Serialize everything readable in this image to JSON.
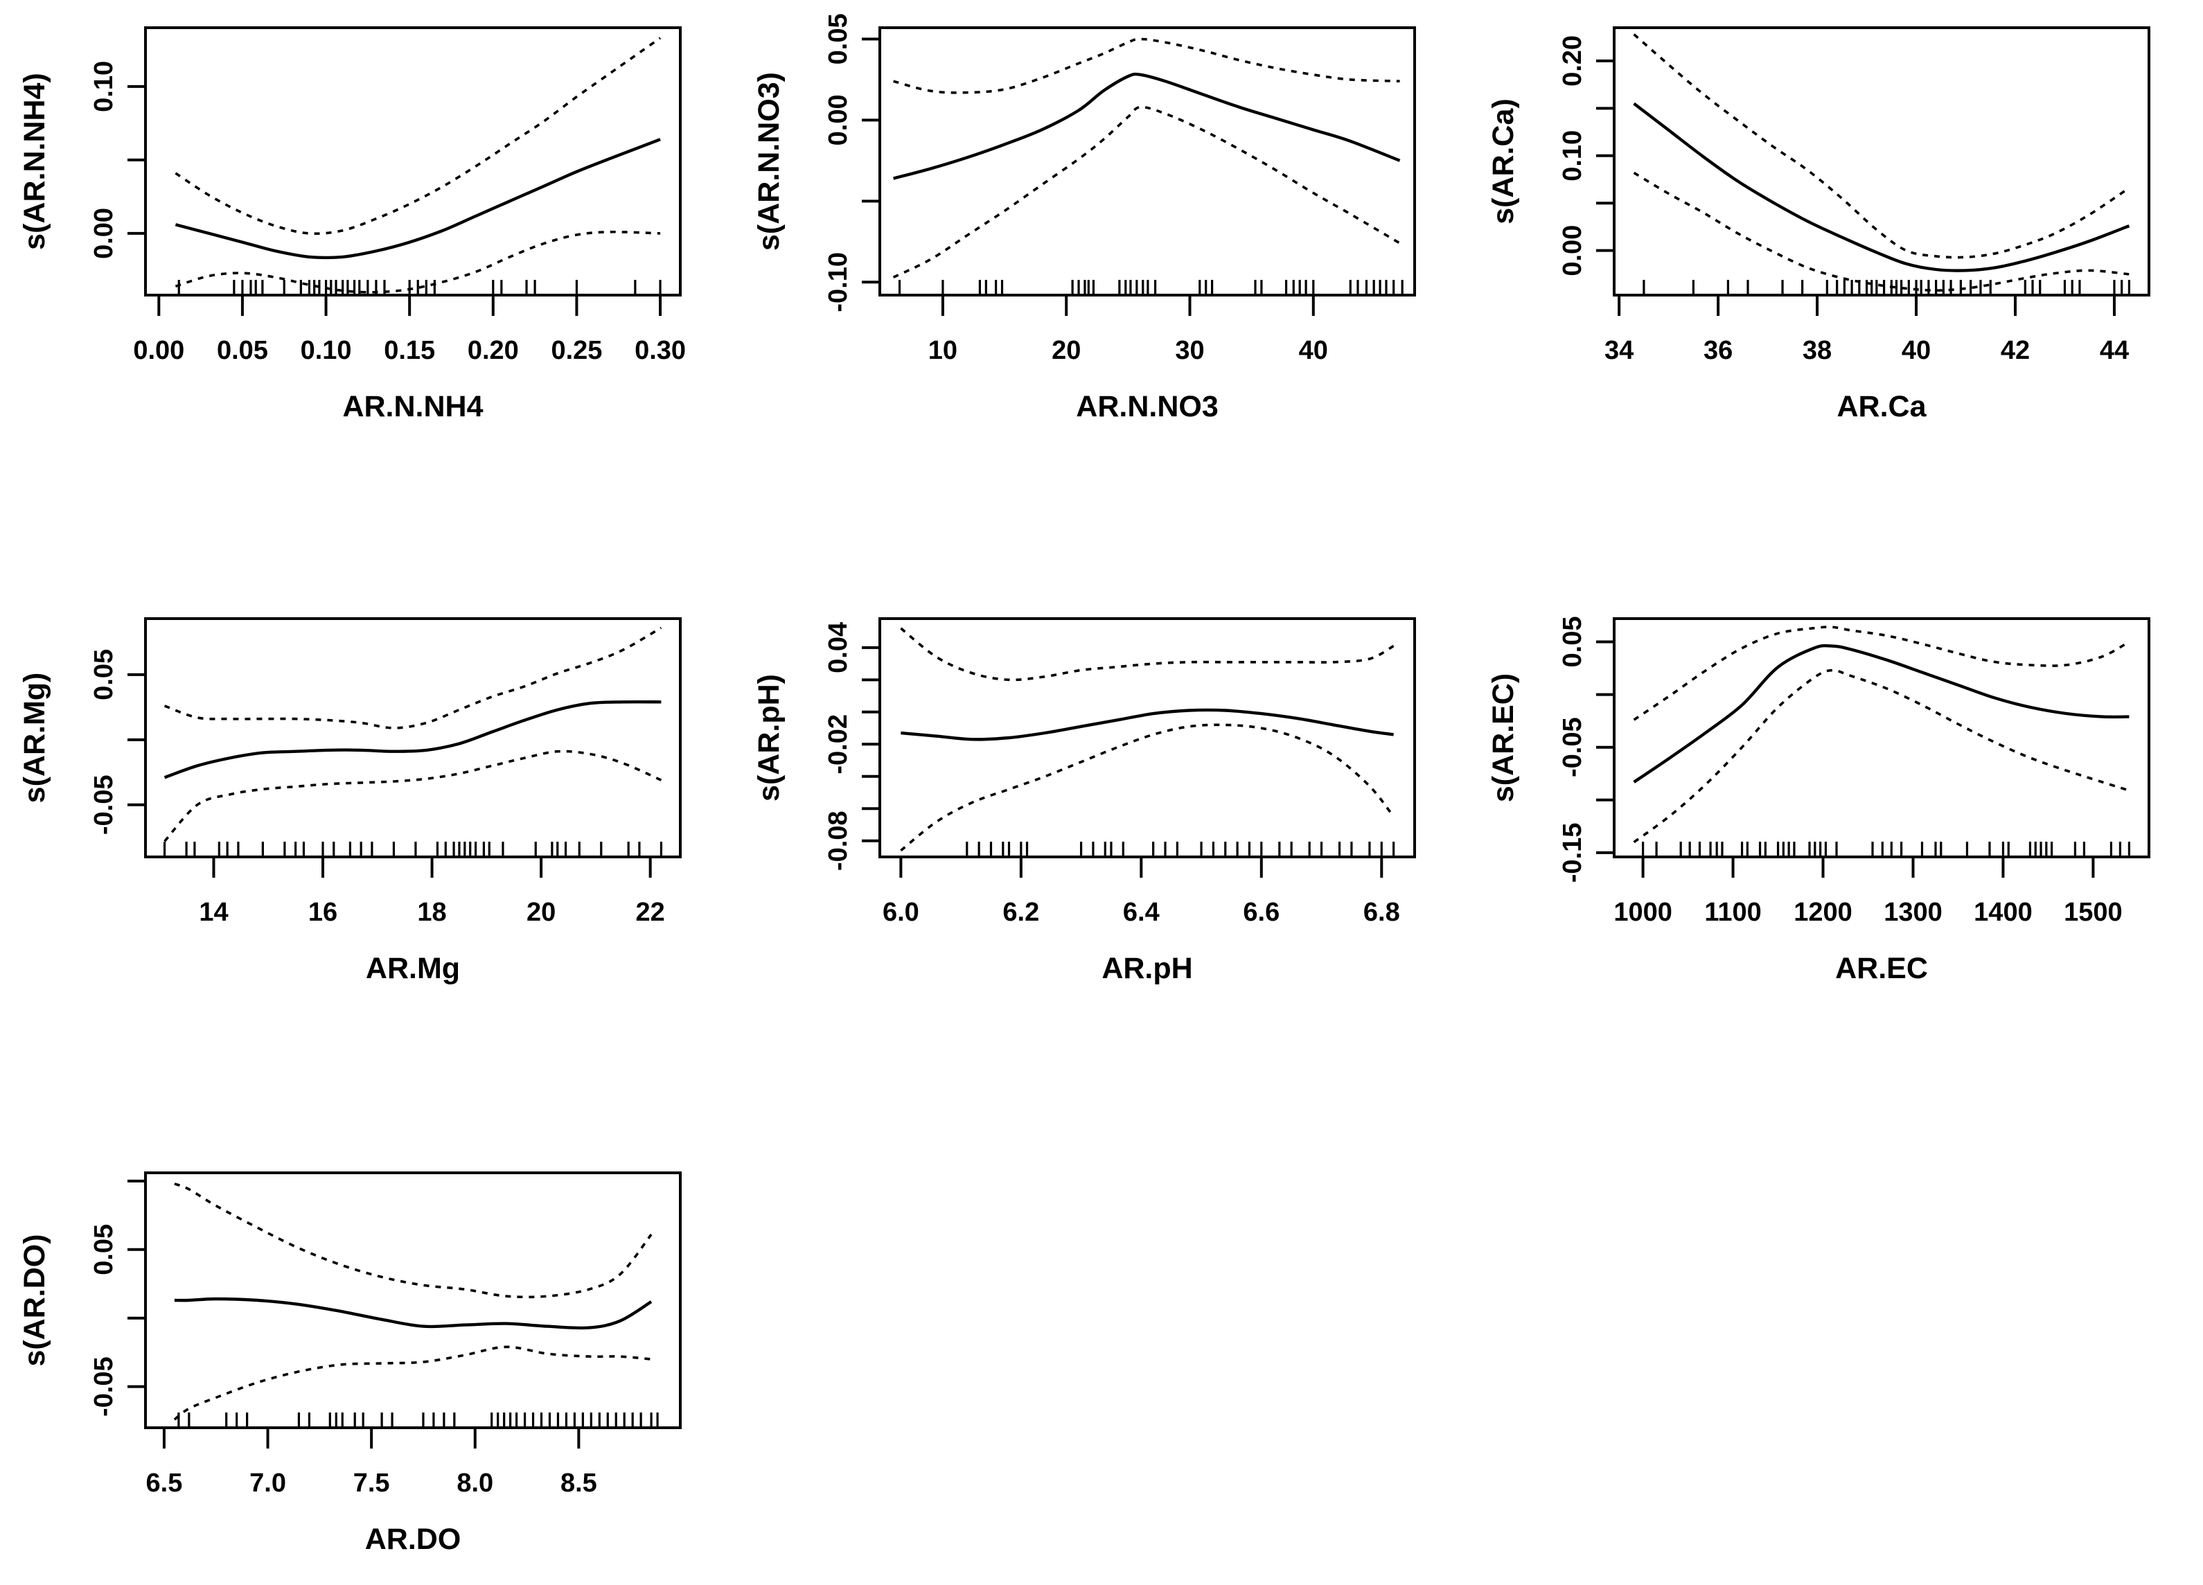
{
  "figure": {
    "background": "#ffffff",
    "line_color": "#000000",
    "description": "Grid of seven GAM smooth-term plots with solid fit lines, dashed 95% confidence bands and rug marks"
  },
  "chart_data": [
    {
      "type": "line",
      "xlabel": "AR.N.NH4",
      "ylabel": "s(AR.N.NH4)",
      "xlim": [
        -0.008,
        0.312
      ],
      "ylim": [
        -0.042,
        0.14
      ],
      "xticks": {
        "values": [
          0.0,
          0.05,
          0.1,
          0.15,
          0.2,
          0.25,
          0.3
        ],
        "labels": [
          "0.00",
          "0.05",
          "0.10",
          "0.15",
          "0.20",
          "0.25",
          "0.30"
        ]
      },
      "yticks": {
        "values": [
          0.0,
          0.05,
          0.1
        ],
        "labels": [
          "0.00",
          "",
          "0.10"
        ]
      },
      "x": [
        0.01,
        0.03,
        0.05,
        0.07,
        0.09,
        0.11,
        0.13,
        0.15,
        0.17,
        0.19,
        0.21,
        0.23,
        0.25,
        0.27,
        0.3
      ],
      "series": [
        {
          "name": "fit",
          "style": "solid",
          "y": [
            0.006,
            0.0,
            -0.006,
            -0.012,
            -0.016,
            -0.016,
            -0.012,
            -0.006,
            0.002,
            0.012,
            0.022,
            0.032,
            0.042,
            0.051,
            0.064
          ]
        },
        {
          "name": "upper-ci",
          "style": "dashed",
          "y": [
            0.041,
            0.026,
            0.014,
            0.005,
            0.0,
            0.002,
            0.01,
            0.02,
            0.032,
            0.046,
            0.061,
            0.076,
            0.093,
            0.109,
            0.133
          ]
        },
        {
          "name": "lower-ci",
          "style": "dashed",
          "y": [
            -0.036,
            -0.029,
            -0.027,
            -0.03,
            -0.035,
            -0.039,
            -0.04,
            -0.038,
            -0.033,
            -0.026,
            -0.016,
            -0.007,
            -0.001,
            0.001,
            0.0
          ]
        }
      ],
      "rug": [
        0.012,
        0.045,
        0.05,
        0.055,
        0.058,
        0.062,
        0.075,
        0.085,
        0.09,
        0.093,
        0.096,
        0.1,
        0.103,
        0.106,
        0.11,
        0.113,
        0.117,
        0.12,
        0.125,
        0.13,
        0.135,
        0.15,
        0.155,
        0.16,
        0.165,
        0.2,
        0.205,
        0.22,
        0.225,
        0.25,
        0.285,
        0.3
      ]
    },
    {
      "type": "line",
      "xlabel": "AR.N.NO3",
      "ylabel": "s(AR.N.NO3)",
      "xlim": [
        4.9,
        48.2
      ],
      "ylim": [
        -0.108,
        0.057
      ],
      "xticks": {
        "values": [
          10,
          20,
          30,
          40
        ],
        "labels": [
          "10",
          "20",
          "30",
          "40"
        ]
      },
      "yticks": {
        "values": [
          -0.1,
          -0.05,
          0.0,
          0.05
        ],
        "labels": [
          "-0.10",
          "",
          "0.00",
          "0.05"
        ]
      },
      "x": [
        6,
        9,
        12,
        15,
        18,
        21,
        23,
        25,
        26,
        28,
        31,
        34,
        37,
        40,
        43,
        47
      ],
      "series": [
        {
          "name": "fit",
          "style": "solid",
          "y": [
            -0.036,
            -0.03,
            -0.023,
            -0.015,
            -0.006,
            0.006,
            0.018,
            0.027,
            0.028,
            0.024,
            0.016,
            0.008,
            0.001,
            -0.006,
            -0.013,
            -0.025
          ]
        },
        {
          "name": "upper-ci",
          "style": "dashed",
          "y": [
            0.024,
            0.018,
            0.017,
            0.019,
            0.026,
            0.035,
            0.041,
            0.048,
            0.05,
            0.048,
            0.043,
            0.037,
            0.032,
            0.028,
            0.025,
            0.024
          ]
        },
        {
          "name": "lower-ci",
          "style": "dashed",
          "y": [
            -0.097,
            -0.086,
            -0.071,
            -0.056,
            -0.04,
            -0.024,
            -0.012,
            0.002,
            0.008,
            0.004,
            -0.006,
            -0.018,
            -0.031,
            -0.045,
            -0.058,
            -0.076
          ]
        }
      ],
      "rug": [
        6.5,
        10,
        13,
        13.5,
        14.3,
        14.8,
        20.5,
        21,
        21.5,
        21.8,
        22.2,
        24.3,
        24.8,
        25.2,
        25.7,
        26.2,
        26.6,
        27.2,
        30.8,
        31.3,
        31.8,
        35.3,
        35.8,
        37.8,
        38.4,
        38.9,
        39.4,
        40,
        43,
        43.6,
        44.3,
        44.9,
        45.4,
        45.9,
        46.5,
        47.2
      ]
    },
    {
      "type": "line",
      "xlabel": "AR.Ca",
      "ylabel": "s(AR.Ca)",
      "xlim": [
        33.9,
        44.7
      ],
      "ylim": [
        -0.047,
        0.235
      ],
      "xticks": {
        "values": [
          34,
          36,
          38,
          40,
          42,
          44
        ],
        "labels": [
          "34",
          "36",
          "38",
          "40",
          "42",
          "44"
        ]
      },
      "yticks": {
        "values": [
          0.0,
          0.05,
          0.1,
          0.15,
          0.2
        ],
        "labels": [
          "0.00",
          "",
          "0.10",
          "",
          "0.20"
        ]
      },
      "x": [
        34.3,
        35.0,
        35.7,
        36.4,
        37.1,
        37.8,
        38.5,
        39.2,
        39.8,
        40.4,
        41.0,
        41.6,
        42.2,
        42.8,
        43.5,
        44.3
      ],
      "series": [
        {
          "name": "fit",
          "style": "solid",
          "y": [
            0.155,
            0.127,
            0.099,
            0.073,
            0.051,
            0.031,
            0.014,
            -0.002,
            -0.014,
            -0.02,
            -0.021,
            -0.018,
            -0.011,
            -0.002,
            0.01,
            0.026
          ]
        },
        {
          "name": "upper-ci",
          "style": "dashed",
          "y": [
            0.228,
            0.196,
            0.165,
            0.137,
            0.11,
            0.085,
            0.055,
            0.022,
            0.0,
            -0.006,
            -0.007,
            -0.003,
            0.006,
            0.018,
            0.038,
            0.066
          ]
        },
        {
          "name": "lower-ci",
          "style": "dashed",
          "y": [
            0.082,
            0.06,
            0.04,
            0.018,
            -0.001,
            -0.018,
            -0.029,
            -0.036,
            -0.04,
            -0.042,
            -0.04,
            -0.035,
            -0.029,
            -0.024,
            -0.021,
            -0.025
          ]
        }
      ],
      "rug": [
        34.5,
        35.5,
        36.2,
        36.6,
        37.3,
        37.7,
        38.2,
        38.4,
        38.55,
        38.7,
        38.85,
        39.0,
        39.1,
        39.2,
        39.35,
        39.5,
        39.6,
        39.7,
        39.85,
        40.0,
        40.1,
        40.25,
        40.4,
        40.55,
        40.7,
        40.9,
        41.1,
        41.3,
        41.5,
        42.2,
        42.35,
        42.5,
        43.0,
        43.15,
        43.3,
        44.0,
        44.15,
        44.3
      ]
    },
    {
      "type": "line",
      "xlabel": "AR.Mg",
      "ylabel": "s(AR.Mg)",
      "xlim": [
        12.75,
        22.55
      ],
      "ylim": [
        -0.09,
        0.093
      ],
      "xticks": {
        "values": [
          14,
          16,
          18,
          20,
          22
        ],
        "labels": [
          "14",
          "16",
          "18",
          "20",
          "22"
        ]
      },
      "yticks": {
        "values": [
          -0.05,
          0.0,
          0.05
        ],
        "labels": [
          "-0.05",
          "",
          "0.05"
        ]
      },
      "x": [
        13.1,
        13.7,
        14.3,
        14.9,
        15.5,
        16.1,
        16.7,
        17.3,
        17.9,
        18.5,
        19.1,
        19.7,
        20.3,
        20.9,
        21.5,
        22.2
      ],
      "series": [
        {
          "name": "fit",
          "style": "solid",
          "y": [
            -0.029,
            -0.02,
            -0.014,
            -0.01,
            -0.009,
            -0.008,
            -0.008,
            -0.009,
            -0.008,
            -0.003,
            0.006,
            0.015,
            0.023,
            0.028,
            0.029,
            0.029
          ]
        },
        {
          "name": "upper-ci",
          "style": "dashed",
          "y": [
            0.026,
            0.017,
            0.016,
            0.016,
            0.016,
            0.015,
            0.013,
            0.009,
            0.013,
            0.023,
            0.033,
            0.041,
            0.051,
            0.059,
            0.069,
            0.086
          ]
        },
        {
          "name": "lower-ci",
          "style": "dashed",
          "y": [
            -0.078,
            -0.05,
            -0.042,
            -0.038,
            -0.036,
            -0.034,
            -0.033,
            -0.032,
            -0.03,
            -0.026,
            -0.02,
            -0.014,
            -0.009,
            -0.011,
            -0.018,
            -0.031
          ]
        }
      ],
      "rug": [
        13.1,
        13.5,
        13.65,
        14.1,
        14.25,
        14.45,
        14.9,
        15.3,
        15.5,
        15.65,
        16.0,
        16.2,
        16.5,
        16.7,
        16.9,
        17.3,
        17.7,
        18.1,
        18.25,
        18.4,
        18.5,
        18.6,
        18.7,
        18.8,
        18.95,
        19.05,
        19.3,
        19.9,
        20.2,
        20.3,
        20.45,
        20.7,
        21.1,
        21.6,
        21.8,
        22.2
      ]
    },
    {
      "type": "line",
      "xlabel": "AR.pH",
      "ylabel": "s(AR.pH)",
      "xlim": [
        5.965,
        6.855
      ],
      "ylim": [
        -0.09,
        0.058
      ],
      "xticks": {
        "values": [
          6.0,
          6.2,
          6.4,
          6.6,
          6.8
        ],
        "labels": [
          "6.0",
          "6.2",
          "6.4",
          "6.6",
          "6.8"
        ]
      },
      "yticks": {
        "values": [
          -0.08,
          -0.06,
          -0.04,
          -0.02,
          0.0,
          0.02,
          0.04
        ],
        "labels": [
          "-0.08",
          "",
          "",
          "-0.02",
          "",
          "",
          "0.04"
        ]
      },
      "x": [
        6.0,
        6.06,
        6.12,
        6.18,
        6.24,
        6.3,
        6.36,
        6.42,
        6.48,
        6.54,
        6.6,
        6.66,
        6.72,
        6.78,
        6.82
      ],
      "series": [
        {
          "name": "fit",
          "style": "solid",
          "y": [
            -0.013,
            -0.015,
            -0.017,
            -0.016,
            -0.013,
            -0.009,
            -0.005,
            -0.001,
            0.001,
            0.001,
            -0.001,
            -0.004,
            -0.008,
            -0.012,
            -0.014
          ]
        },
        {
          "name": "upper-ci",
          "style": "dashed",
          "y": [
            0.052,
            0.034,
            0.024,
            0.02,
            0.022,
            0.026,
            0.028,
            0.03,
            0.031,
            0.031,
            0.031,
            0.031,
            0.031,
            0.033,
            0.041
          ]
        },
        {
          "name": "lower-ci",
          "style": "dashed",
          "y": [
            -0.086,
            -0.068,
            -0.056,
            -0.048,
            -0.04,
            -0.031,
            -0.022,
            -0.014,
            -0.009,
            -0.008,
            -0.01,
            -0.016,
            -0.027,
            -0.046,
            -0.065
          ]
        }
      ],
      "rug": [
        6.11,
        6.13,
        6.15,
        6.17,
        6.18,
        6.2,
        6.21,
        6.3,
        6.32,
        6.34,
        6.35,
        6.37,
        6.42,
        6.44,
        6.46,
        6.5,
        6.52,
        6.54,
        6.56,
        6.58,
        6.6,
        6.63,
        6.65,
        6.68,
        6.7,
        6.73,
        6.75,
        6.78,
        6.8,
        6.82
      ]
    },
    {
      "type": "line",
      "xlabel": "AR.EC",
      "ylabel": "s(AR.EC)",
      "xlim": [
        968,
        1562
      ],
      "ylim": [
        -0.154,
        0.072
      ],
      "xticks": {
        "values": [
          1000,
          1100,
          1200,
          1300,
          1400,
          1500
        ],
        "labels": [
          "1000",
          "1100",
          "1200",
          "1300",
          "1400",
          "1500"
        ]
      },
      "yticks": {
        "values": [
          -0.15,
          -0.1,
          -0.05,
          0.0,
          0.05
        ],
        "labels": [
          "-0.15",
          "",
          "-0.05",
          "",
          "0.05"
        ]
      },
      "x": [
        990,
        1030,
        1070,
        1110,
        1150,
        1190,
        1210,
        1230,
        1270,
        1310,
        1350,
        1390,
        1430,
        1470,
        1510,
        1540
      ],
      "series": [
        {
          "name": "fit",
          "style": "solid",
          "y": [
            -0.083,
            -0.06,
            -0.036,
            -0.01,
            0.026,
            0.044,
            0.046,
            0.043,
            0.033,
            0.021,
            0.009,
            -0.003,
            -0.012,
            -0.018,
            -0.021,
            -0.021
          ]
        },
        {
          "name": "upper-ci",
          "style": "dashed",
          "y": [
            -0.024,
            -0.001,
            0.023,
            0.044,
            0.058,
            0.063,
            0.064,
            0.061,
            0.056,
            0.048,
            0.039,
            0.031,
            0.028,
            0.028,
            0.036,
            0.05
          ]
        },
        {
          "name": "lower-ci",
          "style": "dashed",
          "y": [
            -0.14,
            -0.115,
            -0.085,
            -0.05,
            -0.012,
            0.016,
            0.023,
            0.018,
            0.006,
            -0.01,
            -0.028,
            -0.045,
            -0.06,
            -0.072,
            -0.083,
            -0.091
          ]
        }
      ],
      "rug": [
        1000,
        1015,
        1042,
        1052,
        1063,
        1075,
        1082,
        1088,
        1110,
        1116,
        1130,
        1136,
        1150,
        1156,
        1162,
        1168,
        1185,
        1191,
        1197,
        1203,
        1215,
        1255,
        1266,
        1276,
        1287,
        1310,
        1325,
        1331,
        1360,
        1385,
        1400,
        1406,
        1430,
        1436,
        1442,
        1448,
        1454,
        1480,
        1490,
        1520,
        1530,
        1540
      ]
    },
    {
      "type": "line",
      "xlabel": "AR.DO",
      "ylabel": "s(AR.DO)",
      "xlim": [
        6.41,
        8.99
      ],
      "ylim": [
        -0.08,
        0.106
      ],
      "xticks": {
        "values": [
          6.5,
          7.0,
          7.5,
          8.0,
          8.5
        ],
        "labels": [
          "6.5",
          "7.0",
          "7.5",
          "8.0",
          "8.5"
        ]
      },
      "yticks": {
        "values": [
          -0.05,
          0.0,
          0.05,
          0.1
        ],
        "labels": [
          "-0.05",
          "",
          "0.05",
          ""
        ]
      },
      "x": [
        6.55,
        6.62,
        6.75,
        6.95,
        7.15,
        7.35,
        7.55,
        7.75,
        7.95,
        8.15,
        8.35,
        8.55,
        8.7,
        8.85
      ],
      "series": [
        {
          "name": "fit",
          "style": "solid",
          "y": [
            0.013,
            0.013,
            0.014,
            0.013,
            0.01,
            0.005,
            -0.001,
            -0.006,
            -0.005,
            -0.004,
            -0.006,
            -0.007,
            -0.002,
            0.012
          ]
        },
        {
          "name": "upper-ci",
          "style": "dashed",
          "y": [
            0.098,
            0.094,
            0.082,
            0.066,
            0.051,
            0.039,
            0.03,
            0.024,
            0.021,
            0.016,
            0.016,
            0.021,
            0.032,
            0.061
          ]
        },
        {
          "name": "lower-ci",
          "style": "dashed",
          "y": [
            -0.074,
            -0.066,
            -0.058,
            -0.047,
            -0.039,
            -0.034,
            -0.033,
            -0.032,
            -0.027,
            -0.021,
            -0.026,
            -0.028,
            -0.028,
            -0.03
          ]
        }
      ],
      "rug": [
        6.57,
        6.62,
        6.8,
        6.85,
        6.9,
        7.15,
        7.2,
        7.3,
        7.33,
        7.36,
        7.42,
        7.46,
        7.55,
        7.6,
        7.75,
        7.8,
        7.85,
        7.9,
        8.08,
        8.11,
        8.14,
        8.17,
        8.2,
        8.24,
        8.28,
        8.32,
        8.36,
        8.4,
        8.44,
        8.48,
        8.52,
        8.56,
        8.6,
        8.64,
        8.68,
        8.72,
        8.76,
        8.8,
        8.85,
        8.88
      ]
    }
  ]
}
